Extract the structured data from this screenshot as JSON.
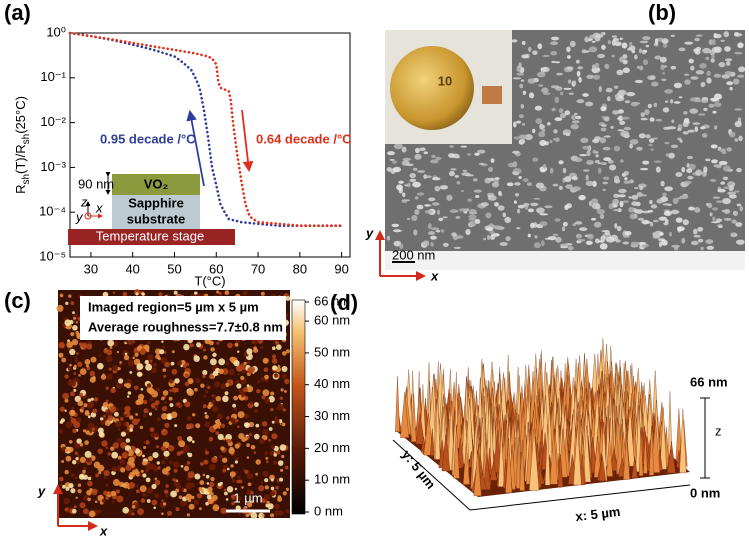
{
  "chart_data": {
    "type": "line",
    "panel_label": "(a)",
    "x_label": "T(°C)",
    "y_label": [
      "R",
      "sh",
      "(T)/R",
      "sh",
      "(25°C)"
    ],
    "log_y": true,
    "xlim": [
      25,
      92
    ],
    "ylim": [
      1e-05,
      1
    ],
    "xticks": [
      30,
      40,
      50,
      60,
      70,
      80,
      90
    ],
    "yticks": [
      {
        "value": 1e-05,
        "label": "10⁻⁵"
      },
      {
        "value": 0.0001,
        "label": "10⁻⁴"
      },
      {
        "value": 0.001,
        "label": "10⁻³"
      },
      {
        "value": 0.01,
        "label": "10⁻²"
      },
      {
        "value": 0.1,
        "label": "10⁻¹"
      },
      {
        "value": 1,
        "label": "10⁰"
      }
    ],
    "series": [
      {
        "color": "#2e3f99",
        "x": [
          25,
          30,
          35,
          40,
          45,
          50,
          52,
          54,
          55,
          56,
          57,
          58,
          59,
          60,
          61,
          62,
          63,
          66,
          70,
          75,
          80,
          85,
          90
        ],
        "values": [
          1,
          0.85,
          0.7,
          0.55,
          0.42,
          0.3,
          0.22,
          0.15,
          0.1,
          0.06,
          0.02,
          0.005,
          0.001,
          0.0004,
          0.00015,
          0.0001,
          7e-05,
          6e-05,
          5.5e-05,
          5e-05,
          5e-05,
          5e-05,
          5e-05
        ]
      },
      {
        "color": "#e0301c",
        "x": [
          25,
          30,
          35,
          40,
          45,
          50,
          55,
          58,
          59,
          60,
          60.5,
          61,
          63,
          63.5,
          64,
          65,
          66,
          67,
          68,
          70,
          75,
          80,
          85,
          90
        ],
        "values": [
          1,
          0.85,
          0.72,
          0.6,
          0.5,
          0.42,
          0.35,
          0.3,
          0.27,
          0.2,
          0.08,
          0.06,
          0.05,
          0.03,
          0.01,
          0.002,
          0.0005,
          0.00015,
          8e-05,
          6e-05,
          5.5e-05,
          5e-05,
          5e-05,
          5e-05
        ]
      }
    ],
    "annotations": [
      {
        "text": "0.95 decade /°C",
        "color": "#2e3f99"
      },
      {
        "text": "0.64 decade /°C",
        "color": "#e0301c"
      }
    ],
    "inset": {
      "thickness": "90 nm",
      "film": "VO₂",
      "substrate": [
        "Sapphire",
        "substrate"
      ],
      "stage": "Temperature stage",
      "axes": [
        "z",
        "x",
        "y"
      ]
    }
  },
  "panel_b": {
    "label": "(b)",
    "axis_x": "x",
    "axis_y": "y",
    "coin": "10",
    "scale_bar": "200 nm"
  },
  "panel_c": {
    "label": "(c)",
    "axis_x": "x",
    "axis_y": "y",
    "info": [
      "Imaged region=5 µm x 5 µm",
      "Average roughness=7.7±0.8 nm"
    ],
    "scale_bar": "1 µm",
    "colorbar": {
      "lim": [
        0,
        66
      ],
      "ticks": [
        {
          "value": 66,
          "label": "66 nm"
        },
        {
          "value": 60,
          "label": "60 nm"
        },
        {
          "value": 50,
          "label": "50 nm"
        },
        {
          "value": 40,
          "label": "40 nm"
        },
        {
          "value": 30,
          "label": "30 nm"
        },
        {
          "value": 20,
          "label": "20 nm"
        },
        {
          "value": 10,
          "label": "10 nm"
        },
        {
          "value": 0,
          "label": "0 nm"
        }
      ]
    }
  },
  "panel_d": {
    "label": "(d)",
    "top": "66 nm",
    "axis": "z",
    "bottom": "0 nm",
    "y_extent": "y: 5 µm",
    "x_extent": "x: 5 µm"
  }
}
